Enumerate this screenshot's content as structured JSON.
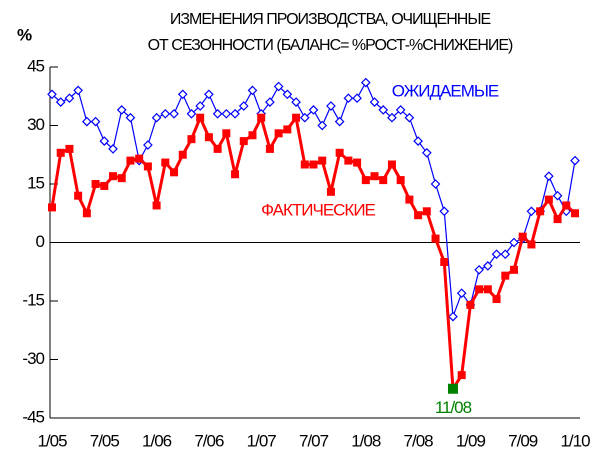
{
  "chart_data": {
    "type": "line",
    "title": "ИЗМЕНЕНИЯ ПРОИЗВОДСТВА, ОЧИЩЕННЫЕ",
    "subtitle": "ОТ СЕЗОННОСТИ (БАЛАНС= %РОСТ-%СНИЖЕНИЕ)",
    "y_label": "%",
    "categories": [
      "1/05",
      null,
      null,
      null,
      null,
      null,
      "7/05",
      null,
      null,
      null,
      null,
      null,
      "1/06",
      null,
      null,
      null,
      null,
      null,
      "7/06",
      null,
      null,
      null,
      null,
      null,
      "1/07",
      null,
      null,
      null,
      null,
      null,
      "7/07",
      null,
      null,
      null,
      null,
      null,
      "1/08",
      null,
      null,
      null,
      null,
      null,
      "7/08",
      null,
      null,
      null,
      null,
      null,
      "1/09",
      null,
      null,
      null,
      null,
      null,
      "7/09",
      null,
      null,
      null,
      null,
      null,
      "1/10"
    ],
    "series": [
      {
        "name": "ОЖИДАЕМЫЕ",
        "color": "#0000ff",
        "marker": "diamond",
        "values": [
          38,
          36,
          37,
          39,
          31,
          31,
          26,
          24,
          34,
          32,
          21,
          25,
          32,
          33,
          33,
          38,
          33,
          35,
          38,
          33,
          33,
          33,
          35,
          39,
          33,
          36,
          40,
          38,
          36,
          32,
          34,
          30,
          35,
          31,
          37,
          37,
          41,
          36,
          34,
          32,
          34,
          32,
          26,
          23,
          15,
          8,
          -19,
          -13,
          -16,
          -7,
          -6,
          -3,
          -3,
          0,
          1,
          8,
          8,
          17,
          12,
          8,
          21
        ]
      },
      {
        "name": "ФАКТИЧЕСКИЕ",
        "color": "#ff0000",
        "marker": "square",
        "values": [
          9,
          23,
          24,
          12,
          7.5,
          15,
          14.5,
          17,
          16.5,
          21,
          21.5,
          19.5,
          9.5,
          20.5,
          18,
          22.5,
          26.5,
          32,
          27,
          24,
          28,
          17.5,
          26,
          27.5,
          32,
          24,
          28,
          29,
          32,
          20,
          20,
          21,
          13,
          23,
          21,
          20.5,
          16,
          17,
          16,
          20,
          16,
          11,
          7,
          8,
          1,
          -5,
          -37.5,
          -34,
          -16,
          -12,
          -12,
          -14.5,
          -8.5,
          -7,
          1.5,
          -0.5,
          8,
          11,
          6,
          9.5,
          7.5
        ]
      }
    ],
    "annotations": [
      {
        "text": "11/08",
        "color": "#008000"
      }
    ],
    "ylim": [
      -45,
      45
    ],
    "yticks": [
      -45,
      -30,
      -15,
      0,
      15,
      30,
      45
    ]
  }
}
